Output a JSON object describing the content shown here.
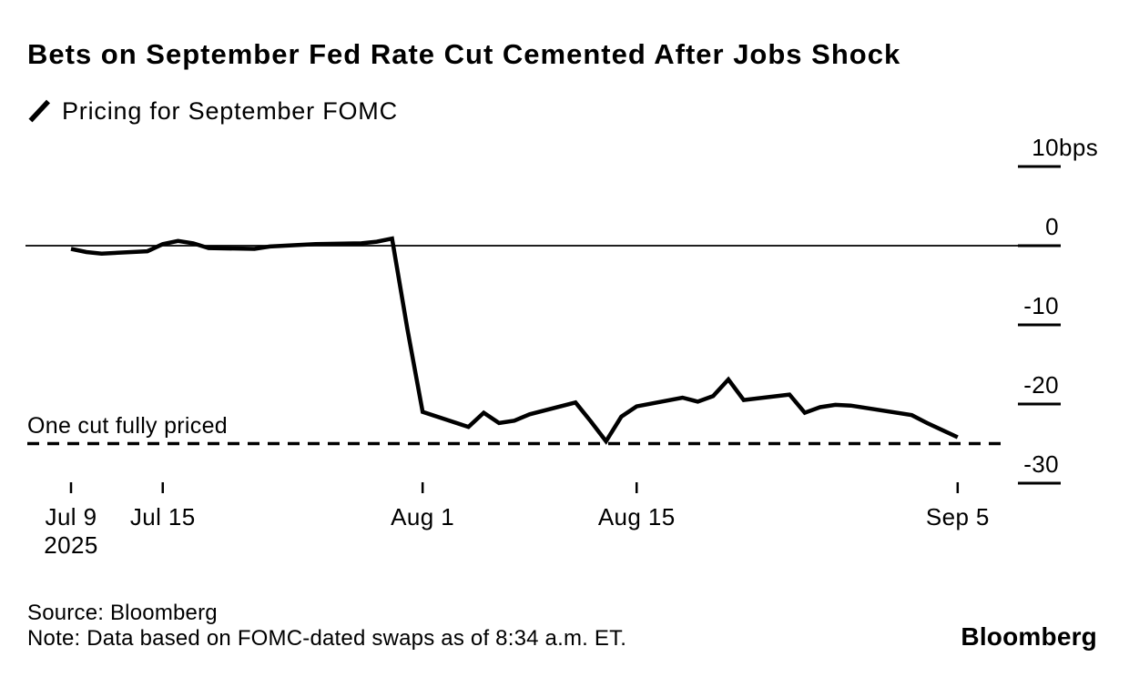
{
  "header": {
    "title": "Bets on September Fed Rate Cut Cemented After Jobs Shock"
  },
  "legend": {
    "label": "Pricing for September FOMC"
  },
  "footer": {
    "source": "Source: Bloomberg",
    "note": "Note: Data based on FOMC-dated swaps as of 8:34 a.m. ET.",
    "logo": "Bloomberg"
  },
  "chart_data": {
    "type": "line",
    "title": "Bets on September Fed Rate Cut Cemented After Jobs Shock",
    "subtitle": "Pricing for September FOMC",
    "unit": "bps",
    "grid": false,
    "legend_position": "top-left",
    "colors": {
      "background": "#ffffff",
      "line": "#000000",
      "axis": "#000000",
      "threshold": "#000000",
      "text": "#000000"
    },
    "y_axis": {
      "side": "right",
      "range": [
        -33,
        12
      ],
      "ticks": [
        {
          "label": "10",
          "unit": "bps",
          "value": 10
        },
        {
          "label": "0",
          "value": 0
        },
        {
          "label": "-10",
          "value": -10
        },
        {
          "label": "-20",
          "value": -20
        },
        {
          "label": "-30",
          "value": -30
        }
      ]
    },
    "x_axis": {
      "range": [
        "2025-07-09",
        "2025-09-05"
      ],
      "ticks": [
        {
          "label": "Jul 9",
          "sublabel": "2025",
          "date": "2025-07-09"
        },
        {
          "label": "Jul 15",
          "date": "2025-07-15"
        },
        {
          "label": "Aug 1",
          "date": "2025-08-01"
        },
        {
          "label": "Aug 15",
          "date": "2025-08-15"
        },
        {
          "label": "Sep 5",
          "date": "2025-09-05"
        }
      ]
    },
    "annotation": {
      "label": "One cut fully priced",
      "value": -25,
      "style": "dashed"
    },
    "series": [
      {
        "name": "Pricing for September FOMC",
        "points": [
          [
            "2025-07-09",
            -0.4
          ],
          [
            "2025-07-10",
            -0.8
          ],
          [
            "2025-07-11",
            -1.0
          ],
          [
            "2025-07-14",
            -0.7
          ],
          [
            "2025-07-15",
            0.2
          ],
          [
            "2025-07-16",
            0.6
          ],
          [
            "2025-07-17",
            0.3
          ],
          [
            "2025-07-18",
            -0.3
          ],
          [
            "2025-07-21",
            -0.4
          ],
          [
            "2025-07-22",
            -0.1
          ],
          [
            "2025-07-23",
            0
          ],
          [
            "2025-07-24",
            0.1
          ],
          [
            "2025-07-25",
            0.2
          ],
          [
            "2025-07-28",
            0.3
          ],
          [
            "2025-07-29",
            0.5
          ],
          [
            "2025-07-30",
            0.9
          ],
          [
            "2025-07-31",
            -10.5
          ],
          [
            "2025-08-01",
            -21.0
          ],
          [
            "2025-08-04",
            -22.9
          ],
          [
            "2025-08-05",
            -21.1
          ],
          [
            "2025-08-06",
            -22.4
          ],
          [
            "2025-08-07",
            -22.1
          ],
          [
            "2025-08-08",
            -21.3
          ],
          [
            "2025-08-11",
            -19.8
          ],
          [
            "2025-08-12",
            -22.2
          ],
          [
            "2025-08-13",
            -24.7
          ],
          [
            "2025-08-14",
            -21.6
          ],
          [
            "2025-08-15",
            -20.3
          ],
          [
            "2025-08-18",
            -19.2
          ],
          [
            "2025-08-19",
            -19.7
          ],
          [
            "2025-08-20",
            -19.0
          ],
          [
            "2025-08-21",
            -16.9
          ],
          [
            "2025-08-22",
            -19.5
          ],
          [
            "2025-08-25",
            -18.8
          ],
          [
            "2025-08-26",
            -21.1
          ],
          [
            "2025-08-27",
            -20.4
          ],
          [
            "2025-08-28",
            -20.1
          ],
          [
            "2025-08-29",
            -20.2
          ],
          [
            "2025-09-02",
            -21.4
          ],
          [
            "2025-09-03",
            -22.4
          ],
          [
            "2025-09-04",
            -23.3
          ],
          [
            "2025-09-05",
            -24.2
          ]
        ]
      }
    ]
  }
}
